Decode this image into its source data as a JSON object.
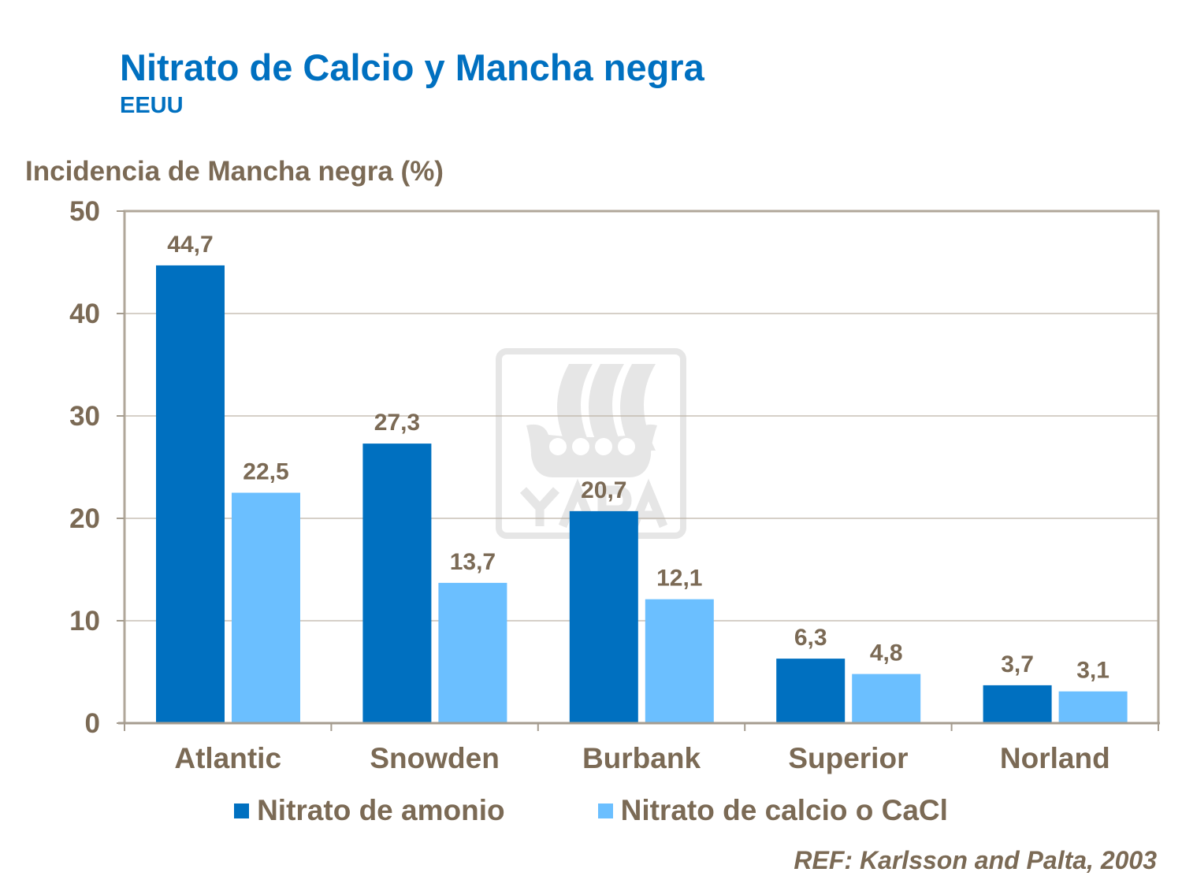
{
  "header": {
    "title": "Nitrato de Calcio y Mancha negra",
    "subtitle": "EEUU"
  },
  "watermark": {
    "text": "YARA",
    "color": "#E6E6E6"
  },
  "reference": "REF: Karlsson and Palta, 2003",
  "chart_data": {
    "type": "bar",
    "title": "Nitrato de Calcio y Mancha negra",
    "subtitle": "EEUU",
    "ylabel": "Incidencia de Mancha negra (%)",
    "xlabel": "",
    "ylim": [
      0,
      50
    ],
    "yticks": [
      "0",
      "10",
      "20",
      "30",
      "40",
      "50"
    ],
    "grid": true,
    "legend_position": "bottom",
    "categories": [
      "Atlantic",
      "Snowden",
      "Burbank",
      "Superior",
      "Norland"
    ],
    "series": [
      {
        "name": "Nitrato de amonio",
        "color": "#0070C0",
        "values": [
          44.7,
          27.3,
          20.7,
          6.3,
          3.7
        ],
        "labels": [
          "44,7",
          "27,3",
          "20,7",
          "6,3",
          "3,7"
        ]
      },
      {
        "name": "Nitrato de calcio o CaCl",
        "color": "#6BBFFF",
        "values": [
          22.5,
          13.7,
          12.1,
          4.8,
          3.1
        ],
        "labels": [
          "22,5",
          "13,7",
          "12,1",
          "4,8",
          "3,1"
        ]
      }
    ]
  }
}
